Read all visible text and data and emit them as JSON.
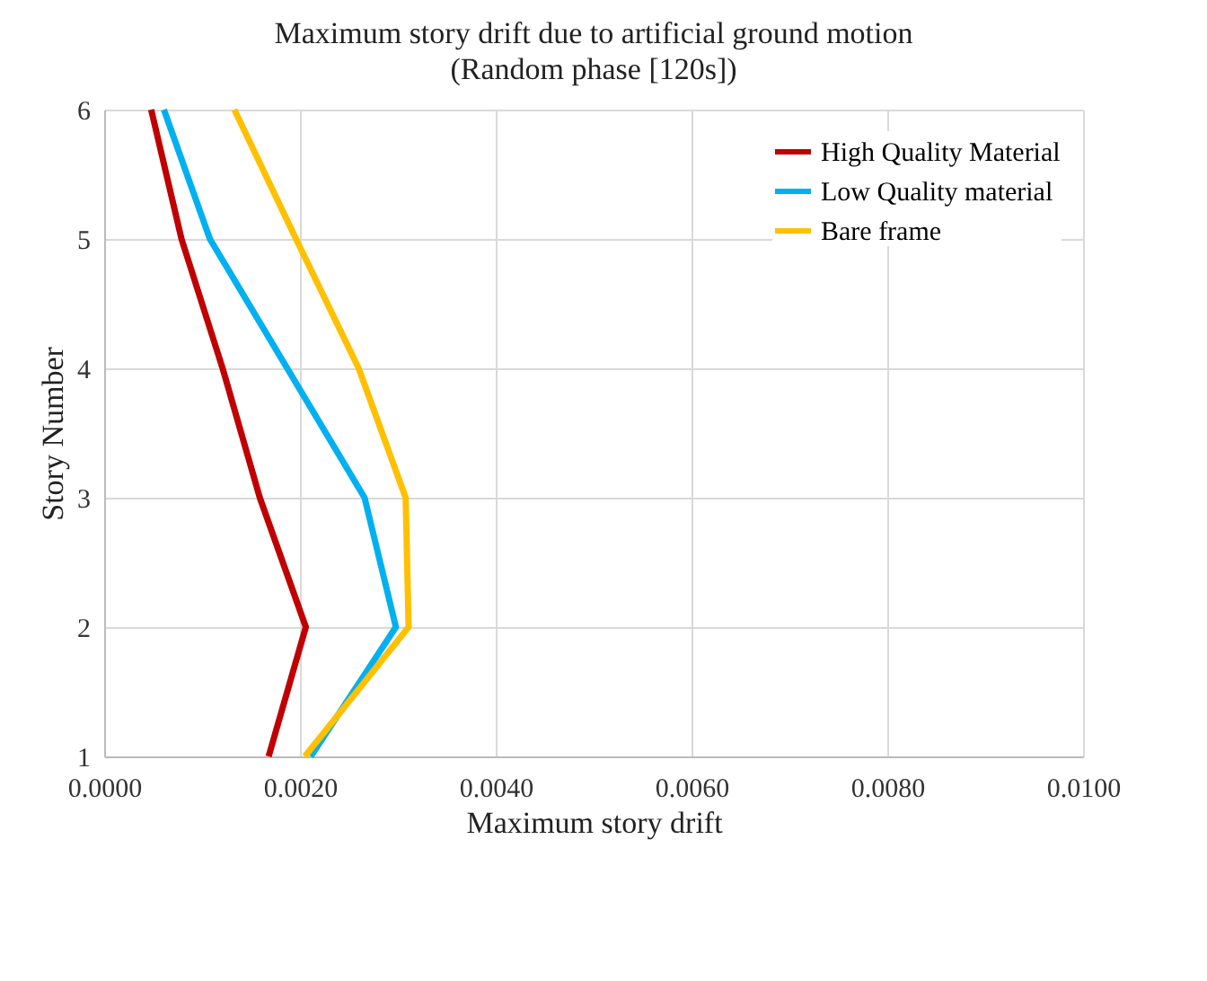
{
  "chart_data": {
    "type": "line",
    "title": "Maximum  story drift due to artificial ground motion",
    "subtitle": "(Random phase [120s])",
    "xlabel": "Maximum  story drift",
    "ylabel": "Story Number",
    "series": [
      {
        "name": "High Quality Material",
        "color": "#c00000",
        "x": [
          0.00168,
          0.00206,
          0.00159,
          0.00121,
          0.00079,
          0.00048
        ],
        "values": [
          1,
          2,
          3,
          4,
          5,
          6
        ]
      },
      {
        "name": "Low Quality material",
        "color": "#00b0f0",
        "x": [
          0.00211,
          0.00298,
          0.00266,
          0.00187,
          0.00108,
          0.00061
        ],
        "values": [
          1,
          2,
          3,
          4,
          5,
          6
        ]
      },
      {
        "name": "Bare frame",
        "color": "#ffc000",
        "x": [
          0.00205,
          0.00311,
          0.00308,
          0.0026,
          0.00196,
          0.00133
        ],
        "values": [
          1,
          2,
          3,
          4,
          5,
          6
        ]
      }
    ],
    "xlim": [
      0,
      0.01
    ],
    "xticks": [
      {
        "value": 0,
        "label": "0.0000"
      },
      {
        "value": 0.002,
        "label": "0.0020"
      },
      {
        "value": 0.004,
        "label": "0.0040"
      },
      {
        "value": 0.006,
        "label": "0.0060"
      },
      {
        "value": 0.008,
        "label": "0.0080"
      },
      {
        "value": 0.01,
        "label": "0.0100"
      }
    ],
    "ylim": [
      1,
      6
    ],
    "yticks": [
      1,
      2,
      3,
      4,
      5,
      6
    ],
    "grid": true,
    "legend": "top right"
  }
}
